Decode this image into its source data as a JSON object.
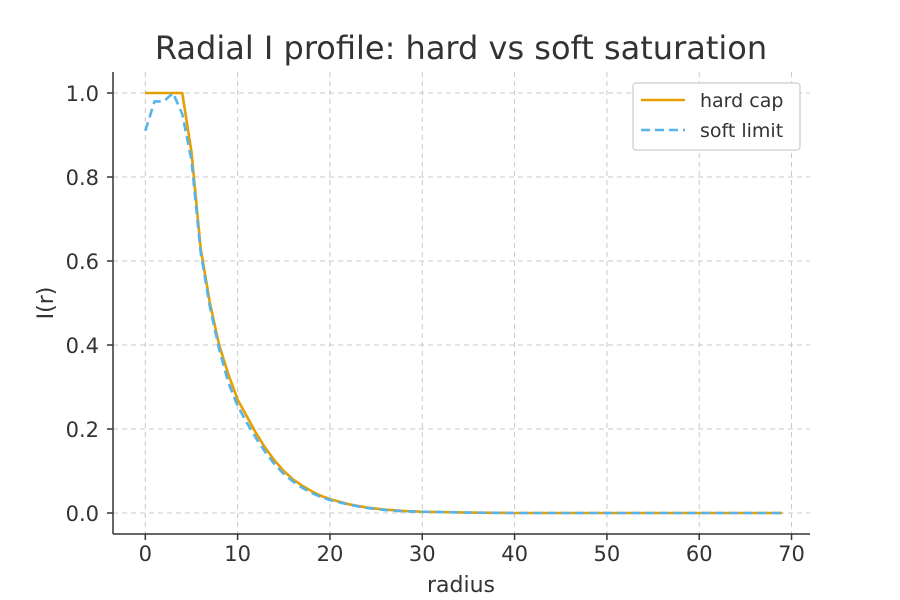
{
  "chart_data": {
    "type": "line",
    "title": "Radial I profile: hard vs soft saturation",
    "xlabel": "radius",
    "ylabel": "I(r)",
    "xlim": [
      -3.5,
      72
    ],
    "ylim": [
      -0.05,
      1.05
    ],
    "xticks": [
      0,
      10,
      20,
      30,
      40,
      50,
      60,
      70
    ],
    "yticks": [
      0.0,
      0.2,
      0.4,
      0.6,
      0.8,
      1.0
    ],
    "grid": true,
    "legend_position": "top-right",
    "series": [
      {
        "name": "hard cap",
        "color": "#E69F00",
        "line_style": "solid",
        "points": [
          [
            0,
            1.0
          ],
          [
            1,
            1.0
          ],
          [
            2,
            1.0
          ],
          [
            3,
            1.0
          ],
          [
            4,
            1.0
          ],
          [
            5,
            0.86
          ],
          [
            6,
            0.63
          ],
          [
            7,
            0.5
          ],
          [
            8,
            0.4
          ],
          [
            9,
            0.33
          ],
          [
            10,
            0.27
          ],
          [
            11,
            0.23
          ],
          [
            12,
            0.19
          ],
          [
            13,
            0.155
          ],
          [
            14,
            0.125
          ],
          [
            15,
            0.1
          ],
          [
            16,
            0.08
          ],
          [
            17,
            0.065
          ],
          [
            18,
            0.052
          ],
          [
            19,
            0.041
          ],
          [
            20,
            0.033
          ],
          [
            22,
            0.021
          ],
          [
            24,
            0.013
          ],
          [
            26,
            0.008
          ],
          [
            28,
            0.005
          ],
          [
            30,
            0.003
          ],
          [
            35,
            0.001
          ],
          [
            40,
            0.0
          ],
          [
            50,
            0.0
          ],
          [
            60,
            0.0
          ],
          [
            69,
            0.0
          ]
        ]
      },
      {
        "name": "soft limit",
        "color": "#56B4E9",
        "line_style": "dashed",
        "points": [
          [
            0,
            0.91
          ],
          [
            1,
            0.98
          ],
          [
            2,
            0.98
          ],
          [
            3,
            1.0
          ],
          [
            4,
            0.95
          ],
          [
            5,
            0.84
          ],
          [
            6,
            0.62
          ],
          [
            7,
            0.49
          ],
          [
            8,
            0.39
          ],
          [
            9,
            0.31
          ],
          [
            10,
            0.255
          ],
          [
            11,
            0.215
          ],
          [
            12,
            0.178
          ],
          [
            13,
            0.145
          ],
          [
            14,
            0.116
          ],
          [
            15,
            0.093
          ],
          [
            16,
            0.075
          ],
          [
            17,
            0.06
          ],
          [
            18,
            0.048
          ],
          [
            19,
            0.038
          ],
          [
            20,
            0.031
          ],
          [
            22,
            0.02
          ],
          [
            24,
            0.012
          ],
          [
            26,
            0.007
          ],
          [
            28,
            0.004
          ],
          [
            30,
            0.003
          ],
          [
            35,
            0.001
          ],
          [
            40,
            0.0
          ],
          [
            50,
            0.0
          ],
          [
            60,
            0.0
          ],
          [
            69,
            0.0
          ]
        ]
      }
    ]
  }
}
